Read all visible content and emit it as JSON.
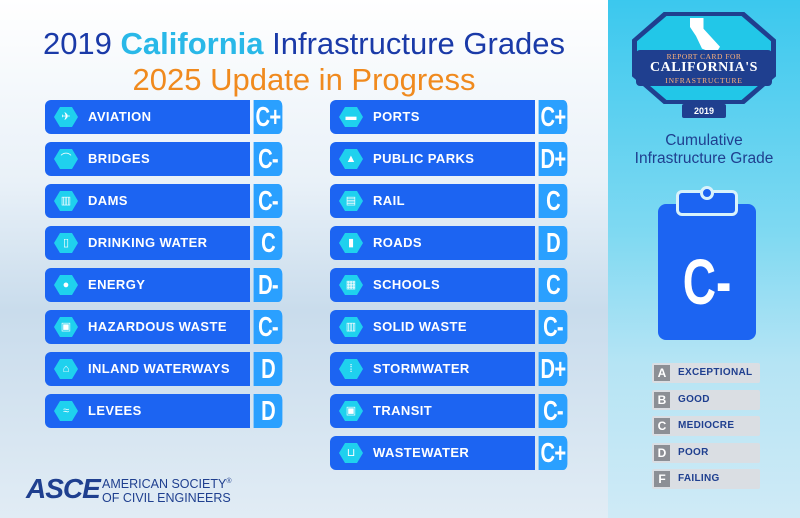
{
  "header": {
    "title_year": "2019",
    "title_state": "California",
    "title_rest": "Infrastructure Grades",
    "subtitle": "2025 Update in Progress"
  },
  "categories_left": [
    {
      "name": "AVIATION",
      "grade": "C+",
      "icon": "airplane-icon"
    },
    {
      "name": "BRIDGES",
      "grade": "C-",
      "icon": "bridge-icon"
    },
    {
      "name": "DAMS",
      "grade": "C-",
      "icon": "dam-icon"
    },
    {
      "name": "DRINKING WATER",
      "grade": "C",
      "icon": "water-glass-icon"
    },
    {
      "name": "ENERGY",
      "grade": "D-",
      "icon": "lightbulb-icon"
    },
    {
      "name": "HAZARDOUS WASTE",
      "grade": "C-",
      "icon": "hazard-icon"
    },
    {
      "name": "INLAND WATERWAYS",
      "grade": "D",
      "icon": "boat-icon"
    },
    {
      "name": "LEVEES",
      "grade": "D",
      "icon": "levee-icon"
    }
  ],
  "categories_right": [
    {
      "name": "PORTS",
      "grade": "C+",
      "icon": "ship-icon"
    },
    {
      "name": "PUBLIC PARKS",
      "grade": "D+",
      "icon": "tree-icon"
    },
    {
      "name": "RAIL",
      "grade": "C",
      "icon": "train-icon"
    },
    {
      "name": "ROADS",
      "grade": "D",
      "icon": "road-icon"
    },
    {
      "name": "SCHOOLS",
      "grade": "C",
      "icon": "school-icon"
    },
    {
      "name": "SOLID WASTE",
      "grade": "C-",
      "icon": "trash-icon"
    },
    {
      "name": "STORMWATER",
      "grade": "D+",
      "icon": "rain-icon"
    },
    {
      "name": "TRANSIT",
      "grade": "C-",
      "icon": "bus-icon"
    },
    {
      "name": "WASTEWATER",
      "grade": "C+",
      "icon": "pipe-icon"
    }
  ],
  "badge": {
    "line1": "REPORT CARD FOR",
    "line2": "CALIFORNIA'S",
    "line3": "INFRASTRUCTURE",
    "year": "2019"
  },
  "cumulative": {
    "label": "Cumulative Infrastructure Grade",
    "grade": "C-"
  },
  "legend": [
    {
      "letter": "A",
      "text": "EXCEPTIONAL"
    },
    {
      "letter": "B",
      "text": "GOOD"
    },
    {
      "letter": "C",
      "text": "MEDIOCRE"
    },
    {
      "letter": "D",
      "text": "POOR"
    },
    {
      "letter": "F",
      "text": "FAILING"
    }
  ],
  "footer": {
    "logo": "ASCE",
    "org_line1": "AMERICAN SOCIETY",
    "org_line1_mark": "®",
    "org_line2": "OF CIVIL ENGINEERS"
  },
  "colors": {
    "bar": "#1c64f2",
    "grade_tab": "#2aa0ff",
    "icon": "#1fd1ee",
    "title_blue": "#1a3aa8",
    "title_cyan": "#29b8e8",
    "subtitle_orange": "#f08a1e"
  }
}
